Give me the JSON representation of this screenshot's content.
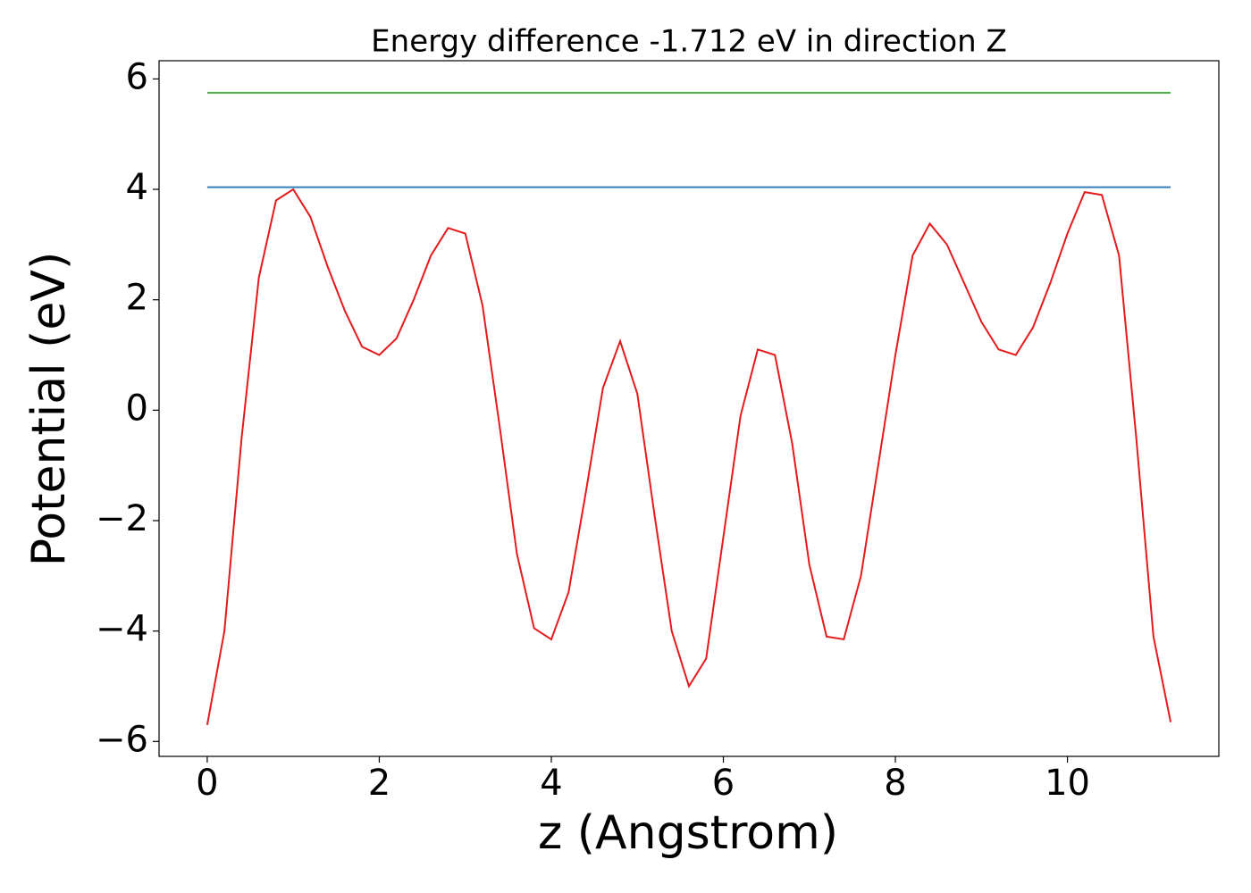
{
  "chart_data": {
    "type": "line",
    "title": "Energy difference -1.712 eV in direction Z",
    "x_label": "z (Angstrom)",
    "y_label": "Potential (eV)",
    "xlim": [
      -0.56,
      11.76
    ],
    "ylim": [
      -6.27,
      6.33
    ],
    "xticks": [
      0,
      2,
      4,
      6,
      8,
      10
    ],
    "yticks": [
      {
        "value": -6,
        "label": "−6"
      },
      {
        "value": -4,
        "label": "−4"
      },
      {
        "value": -2,
        "label": "−2"
      },
      0,
      2,
      4,
      6
    ],
    "series": [
      {
        "color": "#e41a1c",
        "x": [
          0,
          0.2,
          0.4,
          0.6,
          0.8,
          1.0,
          1.2,
          1.4,
          1.6,
          1.8,
          2.0,
          2.2,
          2.4,
          2.6,
          2.8,
          3.0,
          3.2,
          3.4,
          3.6,
          3.8,
          4.0,
          4.2,
          4.4,
          4.6,
          4.8,
          5.0,
          5.2,
          5.4,
          5.6,
          5.8,
          6.0,
          6.2,
          6.4,
          6.6,
          6.8,
          7.0,
          7.2,
          7.4,
          7.6,
          7.8,
          8.0,
          8.2,
          8.4,
          8.6,
          8.8,
          9.0,
          9.2,
          9.4,
          9.6,
          9.8,
          10.0,
          10.2,
          10.4,
          10.6,
          10.8,
          11.0,
          11.2
        ],
        "values": [
          -5.7,
          -4.0,
          -0.5,
          2.4,
          3.8,
          4.0,
          3.5,
          2.6,
          1.8,
          1.15,
          1.0,
          1.3,
          2.0,
          2.8,
          3.3,
          3.2,
          1.9,
          -0.3,
          -2.6,
          -3.95,
          -4.15,
          -3.3,
          -1.5,
          0.4,
          1.25,
          0.3,
          -1.9,
          -4.0,
          -5.0,
          -4.5,
          -2.3,
          -0.1,
          1.1,
          1.0,
          -0.6,
          -2.8,
          -4.1,
          -4.15,
          -3.0,
          -1.0,
          1.0,
          2.8,
          3.38,
          3.0,
          2.3,
          1.6,
          1.1,
          1.0,
          1.5,
          2.3,
          3.2,
          3.95,
          3.9,
          2.8,
          -0.5,
          -4.1,
          -5.65
        ]
      },
      {
        "color": "#377eb8",
        "x": [
          0,
          11.2
        ],
        "values": [
          4.04,
          4.04
        ]
      },
      {
        "color": "#4daf4a",
        "x": [
          0,
          11.2
        ],
        "values": [
          5.75,
          5.75
        ]
      }
    ]
  }
}
